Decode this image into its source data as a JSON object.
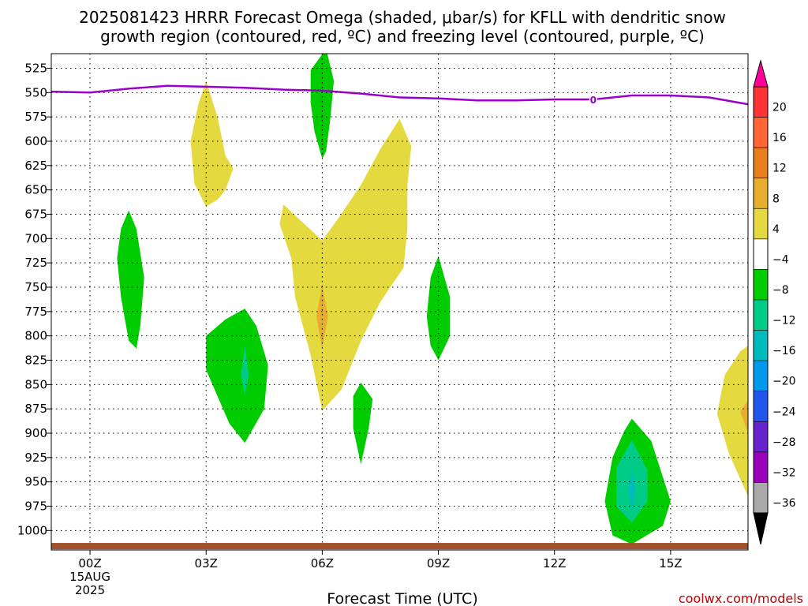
{
  "title": {
    "line1": "2025081423 HRRR Forecast Omega (shaded, μbar/s) for KFLL with dendritic snow",
    "line2": "growth region (contoured, red, ºC) and freezing level (contoured, purple, ºC)"
  },
  "credit": "coolwx.com/models",
  "chart_data": {
    "type": "time-height contour",
    "xlabel": "Forecast Time (UTC)",
    "ylabel": "",
    "x_units": "forecast hour",
    "xlim": [
      -1,
      17
    ],
    "x_ticks": [
      {
        "x": 0,
        "label": "00Z",
        "sub1": "15AUG",
        "sub2": "2025"
      },
      {
        "x": 3,
        "label": "03Z"
      },
      {
        "x": 6,
        "label": "06Z"
      },
      {
        "x": 9,
        "label": "09Z"
      },
      {
        "x": 12,
        "label": "12Z"
      },
      {
        "x": 15,
        "label": "15Z"
      }
    ],
    "y_units": "hPa",
    "ylim": [
      1020,
      510
    ],
    "y_ticks": [
      525,
      550,
      575,
      600,
      625,
      650,
      675,
      700,
      725,
      750,
      775,
      800,
      825,
      850,
      875,
      900,
      925,
      950,
      975,
      1000
    ],
    "grid": true,
    "colorbar": {
      "labels": [
        "20",
        "16",
        "12",
        "8",
        "4",
        "−4",
        "−8",
        "−12",
        "−16",
        "−20",
        "−24",
        "−28",
        "−32",
        "−36"
      ],
      "colors": [
        "#ff0099",
        "#ff3333",
        "#ff6633",
        "#e87f1e",
        "#e6ad2e",
        "#e5d940",
        "#ffffff",
        "#00cc00",
        "#00cc88",
        "#00bbbb",
        "#0099ee",
        "#2255ee",
        "#6622cc",
        "#9900bb",
        "#aaaaaa",
        "#000000"
      ]
    },
    "freezing_level": {
      "label": "0",
      "label_x": 13,
      "color": "#9900cc",
      "x": [
        -1,
        0,
        1,
        2,
        3,
        4,
        5,
        6,
        7,
        8,
        9,
        10,
        11,
        12,
        13,
        14,
        15,
        16,
        17
      ],
      "p": [
        549,
        550,
        546,
        543,
        544,
        545,
        547,
        548,
        551,
        555,
        556,
        558,
        558,
        557,
        557,
        553,
        553,
        555,
        562
      ]
    },
    "surface_color": "#a0522d",
    "surface_p": 1016,
    "omega_regions": [
      {
        "level": "-4",
        "color": "#00cc00",
        "points": [
          [
            1.0,
            671
          ],
          [
            1.2,
            690
          ],
          [
            1.4,
            740
          ],
          [
            1.3,
            790
          ],
          [
            1.2,
            813
          ],
          [
            1.0,
            805
          ],
          [
            0.8,
            760
          ],
          [
            0.7,
            720
          ],
          [
            0.8,
            690
          ]
        ]
      },
      {
        "level": "-4",
        "color": "#00cc00",
        "points": [
          [
            4.0,
            772
          ],
          [
            4.3,
            790
          ],
          [
            4.6,
            830
          ],
          [
            4.5,
            875
          ],
          [
            4.0,
            910
          ],
          [
            3.6,
            890
          ],
          [
            3.0,
            835
          ],
          [
            3.0,
            800
          ],
          [
            3.5,
            783
          ]
        ]
      },
      {
        "level": "-8",
        "color": "#00cc88",
        "points": [
          [
            4.0,
            810
          ],
          [
            4.1,
            840
          ],
          [
            4.0,
            861
          ],
          [
            3.9,
            840
          ]
        ]
      },
      {
        "level": "-4",
        "color": "#00cc00",
        "points": [
          [
            5.7,
            527
          ],
          [
            6.1,
            505
          ],
          [
            6.3,
            538
          ],
          [
            6.2,
            580
          ],
          [
            6.1,
            610
          ],
          [
            6.0,
            618
          ],
          [
            5.8,
            590
          ],
          [
            5.7,
            560
          ],
          [
            5.7,
            540
          ]
        ]
      },
      {
        "level": "-4",
        "color": "#00cc00",
        "points": [
          [
            7.0,
            848
          ],
          [
            7.3,
            865
          ],
          [
            7.2,
            895
          ],
          [
            7.0,
            932
          ],
          [
            6.8,
            895
          ],
          [
            6.8,
            862
          ]
        ]
      },
      {
        "level": "-4",
        "color": "#00cc00",
        "points": [
          [
            9.0,
            718
          ],
          [
            9.3,
            760
          ],
          [
            9.3,
            800
          ],
          [
            9.0,
            825
          ],
          [
            8.8,
            810
          ],
          [
            8.7,
            780
          ],
          [
            8.8,
            740
          ]
        ]
      },
      {
        "level": "-4",
        "color": "#00cc00",
        "points": [
          [
            14.0,
            885
          ],
          [
            14.5,
            908
          ],
          [
            15.0,
            970
          ],
          [
            14.8,
            995
          ],
          [
            14.0,
            1014
          ],
          [
            13.5,
            1005
          ],
          [
            13.3,
            970
          ],
          [
            13.5,
            925
          ],
          [
            13.8,
            898
          ]
        ]
      },
      {
        "level": "-8",
        "color": "#00cc88",
        "points": [
          [
            14.0,
            907
          ],
          [
            14.4,
            938
          ],
          [
            14.4,
            970
          ],
          [
            14.0,
            992
          ],
          [
            13.6,
            975
          ],
          [
            13.6,
            935
          ]
        ]
      },
      {
        "level": "-12",
        "color": "#00bbbb",
        "points": [
          [
            14.0,
            940
          ],
          [
            14.1,
            957
          ],
          [
            14.0,
            978
          ],
          [
            13.9,
            957
          ]
        ]
      },
      {
        "level": "4",
        "color": "#e5d940",
        "points": [
          [
            3.0,
            538
          ],
          [
            3.3,
            576
          ],
          [
            3.5,
            615
          ],
          [
            3.7,
            628
          ],
          [
            3.5,
            650
          ],
          [
            3.3,
            660
          ],
          [
            3.0,
            667
          ],
          [
            2.7,
            644
          ],
          [
            2.6,
            600
          ],
          [
            2.8,
            562
          ]
        ]
      },
      {
        "level": "4",
        "color": "#e5d940",
        "points": [
          [
            5.0,
            665
          ],
          [
            5.4,
            680
          ],
          [
            6.0,
            702
          ],
          [
            6.4,
            680
          ],
          [
            7.0,
            645
          ],
          [
            7.5,
            608
          ],
          [
            8.0,
            577
          ],
          [
            8.3,
            605
          ],
          [
            8.2,
            645
          ],
          [
            8.2,
            690
          ],
          [
            8.1,
            730
          ],
          [
            7.5,
            765
          ],
          [
            7.0,
            805
          ],
          [
            6.5,
            855
          ],
          [
            6.0,
            877
          ],
          [
            5.7,
            820
          ],
          [
            5.3,
            760
          ],
          [
            5.2,
            720
          ],
          [
            4.9,
            685
          ]
        ]
      },
      {
        "level": "8",
        "color": "#e6ad2e",
        "points": [
          [
            6.0,
            748
          ],
          [
            6.15,
            780
          ],
          [
            6.0,
            813
          ],
          [
            5.85,
            780
          ]
        ]
      },
      {
        "level": "4",
        "color": "#e5d940",
        "points": [
          [
            17.0,
            810
          ],
          [
            17.0,
            965
          ],
          [
            16.5,
            920
          ],
          [
            16.2,
            880
          ],
          [
            16.4,
            840
          ],
          [
            16.8,
            816
          ]
        ]
      },
      {
        "level": "8",
        "color": "#e6ad2e",
        "points": [
          [
            16.8,
            878
          ],
          [
            17.0,
            866
          ],
          [
            17.0,
            900
          ]
        ]
      }
    ]
  }
}
